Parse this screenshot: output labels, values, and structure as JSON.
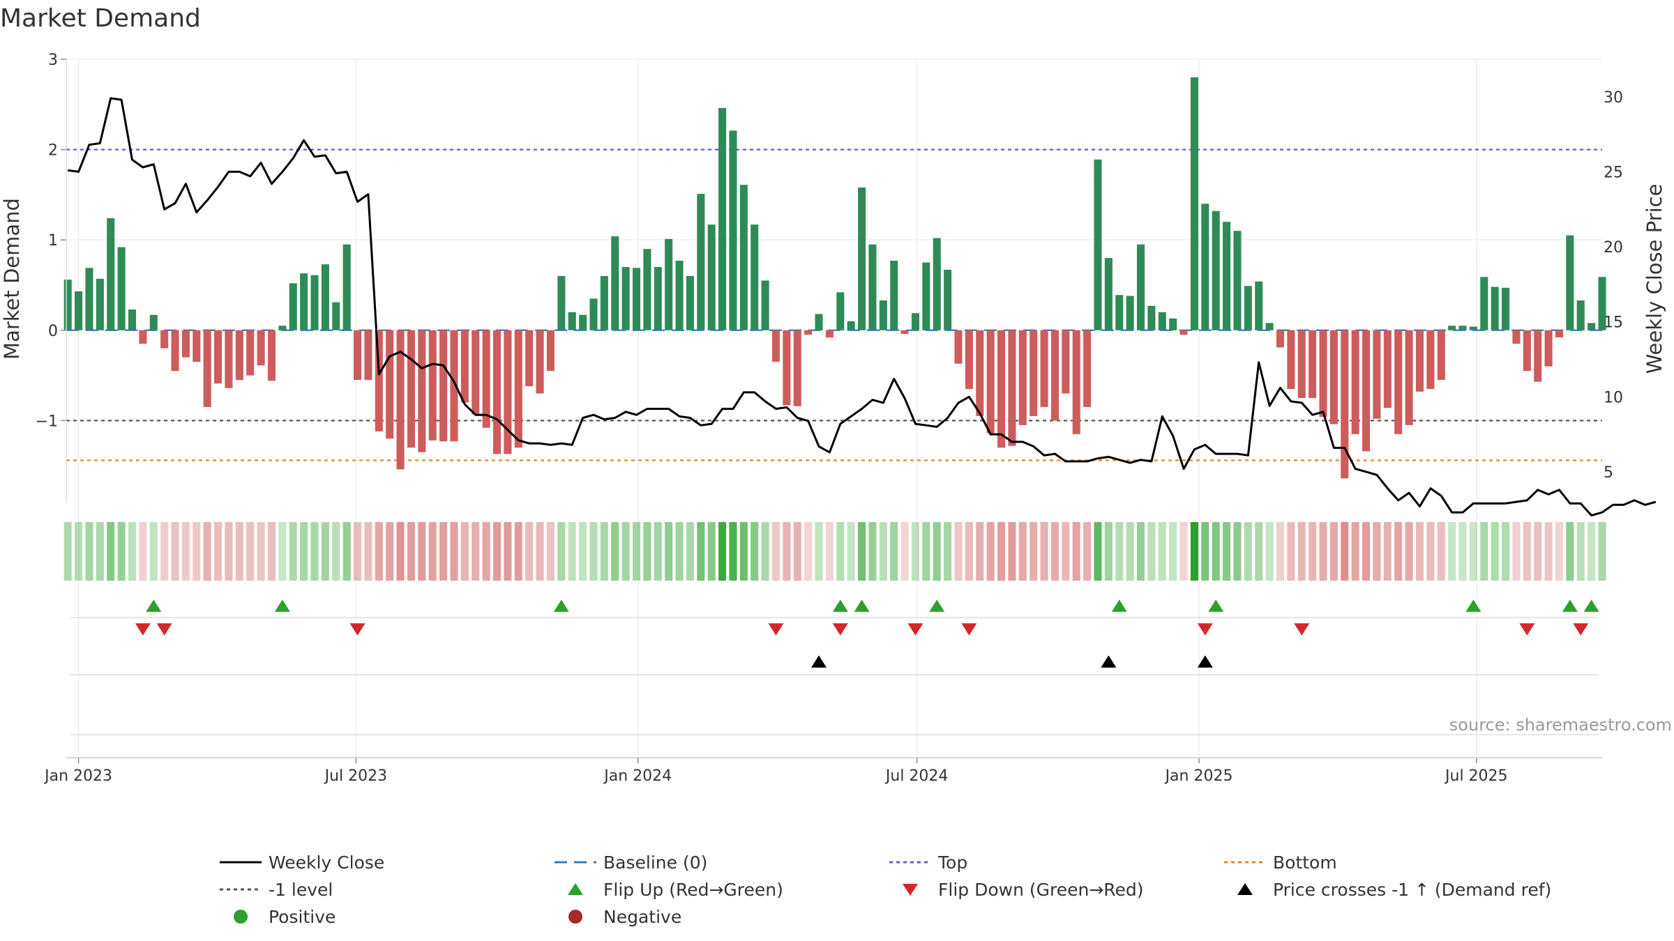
{
  "chart_data": {
    "type": "bar",
    "title": "Market Demand",
    "ylabel": "Market Demand",
    "y2label": "Weekly Close Price",
    "ylim": [
      -1.9,
      3.0
    ],
    "y_ticks": [
      3,
      2,
      1,
      0,
      -1
    ],
    "y_tick_labels": [
      "3",
      "2",
      "1",
      "0",
      "−1"
    ],
    "y2lim": [
      3.0,
      32.5
    ],
    "y2_ticks": [
      30,
      25,
      20,
      15,
      10,
      5
    ],
    "y2_tick_labels": [
      "30",
      "25",
      "20",
      "15",
      "10",
      "5"
    ],
    "x_range": [
      "2022-12-24",
      "2025-09-21"
    ],
    "x_ticks": [
      {
        "date": "2023-01-01",
        "label": "Jan 2023"
      },
      {
        "date": "2023-07-01",
        "label": "Jul 2023"
      },
      {
        "date": "2024-01-01",
        "label": "Jan 2024"
      },
      {
        "date": "2024-07-01",
        "label": "Jul 2024"
      },
      {
        "date": "2025-01-01",
        "label": "Jan 2025"
      },
      {
        "date": "2025-07-01",
        "label": "Jul 2025"
      }
    ],
    "start_week": "2022-12-25",
    "demand_values": [
      0.56,
      0.43,
      0.69,
      0.57,
      1.24,
      0.92,
      0.23,
      -0.15,
      0.17,
      -0.2,
      -0.45,
      -0.3,
      -0.35,
      -0.85,
      -0.59,
      -0.64,
      -0.55,
      -0.5,
      -0.39,
      -0.56,
      0.05,
      0.52,
      0.63,
      0.61,
      0.73,
      0.31,
      0.95,
      -0.55,
      -0.55,
      -1.12,
      -1.2,
      -1.54,
      -1.3,
      -1.35,
      -1.22,
      -1.23,
      -1.23,
      -0.8,
      -0.93,
      -1.08,
      -1.37,
      -1.37,
      -1.3,
      -0.62,
      -0.7,
      -0.45,
      0.6,
      0.2,
      0.17,
      0.35,
      0.6,
      1.04,
      0.7,
      0.69,
      0.9,
      0.7,
      1.01,
      0.77,
      0.6,
      1.51,
      1.17,
      2.46,
      2.21,
      1.61,
      1.17,
      0.55,
      -0.35,
      -0.83,
      -0.84,
      -0.05,
      0.18,
      -0.08,
      0.42,
      0.1,
      1.58,
      0.95,
      0.33,
      0.77,
      -0.04,
      0.19,
      0.75,
      1.02,
      0.67,
      -0.37,
      -0.65,
      -0.95,
      -1.14,
      -1.3,
      -1.28,
      -1.05,
      -0.95,
      -0.85,
      -1.0,
      -0.7,
      -1.15,
      -0.85,
      1.89,
      0.8,
      0.39,
      0.38,
      0.95,
      0.27,
      0.2,
      0.13,
      -0.05,
      2.8,
      1.4,
      1.32,
      1.2,
      1.1,
      0.49,
      0.54,
      0.08,
      -0.19,
      -0.65,
      -0.75,
      -0.75,
      -0.96,
      -1.04,
      -1.64,
      -1.15,
      -1.34,
      -0.98,
      -0.86,
      -1.15,
      -1.05,
      -0.68,
      -0.65,
      -0.55,
      0.05,
      0.05,
      0.04,
      0.59,
      0.48,
      0.47,
      -0.15,
      -0.45,
      -0.57,
      -0.4,
      -0.08,
      1.05,
      0.33,
      0.08,
      0.59
    ],
    "close_values": [
      25.1,
      25.0,
      26.8,
      26.9,
      29.9,
      29.8,
      25.8,
      25.3,
      25.5,
      22.5,
      22.9,
      24.2,
      22.3,
      23.1,
      24.0,
      25.0,
      25.0,
      24.7,
      25.6,
      24.2,
      25.0,
      25.9,
      27.1,
      26.0,
      26.1,
      24.9,
      25.0,
      23.0,
      23.5,
      11.5,
      12.7,
      13.0,
      12.5,
      11.9,
      12.2,
      12.1,
      11.0,
      9.5,
      8.8,
      8.8,
      8.5,
      7.8,
      7.1,
      6.9,
      6.9,
      6.8,
      6.9,
      6.8,
      8.6,
      8.8,
      8.5,
      8.6,
      9.0,
      8.8,
      9.2,
      9.2,
      9.2,
      8.7,
      8.6,
      8.1,
      8.2,
      9.2,
      9.2,
      10.3,
      10.3,
      9.7,
      9.2,
      9.3,
      8.6,
      8.4,
      6.7,
      6.3,
      8.2,
      8.7,
      9.2,
      9.8,
      9.6,
      11.2,
      9.9,
      8.2,
      8.1,
      8.0,
      8.6,
      9.6,
      10.0,
      8.9,
      7.5,
      7.5,
      7.0,
      7.0,
      6.7,
      6.1,
      6.2,
      5.7,
      5.7,
      5.7,
      5.9,
      6.0,
      5.8,
      5.6,
      5.8,
      5.7,
      8.7,
      7.4,
      5.2,
      6.5,
      6.8,
      6.2,
      6.2,
      6.2,
      6.1,
      12.3,
      9.4,
      10.6,
      9.7,
      9.6,
      8.8,
      9.0,
      6.6,
      6.6,
      5.2,
      5.0,
      4.8,
      3.9,
      3.1,
      3.6,
      2.7,
      3.9,
      3.4,
      2.3,
      2.3,
      2.9,
      2.9,
      2.9,
      2.9,
      3.0,
      3.1,
      3.8,
      3.5,
      3.8,
      2.9,
      2.9,
      2.1,
      2.3,
      2.8,
      2.8,
      3.1,
      2.8,
      3.0
    ],
    "reference_lines": [
      {
        "name": "Baseline (0)",
        "value": 0,
        "color": "#2f7ebc"
      },
      {
        "name": "Top",
        "value": 2.0,
        "color": "#6a5acd"
      },
      {
        "name": "-1 level",
        "value": -1.0,
        "color": "#555555"
      },
      {
        "name": "Bottom",
        "value": -1.44,
        "color": "#e08a1e"
      }
    ],
    "flip_up_weeks": [
      8,
      20,
      46,
      72,
      74,
      81,
      98,
      107,
      131,
      140,
      142
    ],
    "flip_down_weeks": [
      7,
      9,
      27,
      66,
      72,
      79,
      84,
      106,
      115,
      136,
      141
    ],
    "price_cross_weeks": [
      70,
      97,
      106
    ],
    "source": "source: sharemaestro.com",
    "legend": [
      {
        "label": "Weekly Close",
        "marker": "solid-line",
        "color": "#000000"
      },
      {
        "label": "Baseline (0)",
        "marker": "dash-line",
        "color": "#2f7ebc"
      },
      {
        "label": "Top",
        "marker": "dot-line",
        "color": "#6a5acd"
      },
      {
        "label": "Bottom",
        "marker": "dot-line",
        "color": "#e08a1e"
      },
      {
        "label": "-1 level",
        "marker": "dot-line",
        "color": "#555555"
      },
      {
        "label": "Flip Up (Red→Green)",
        "marker": "triangle-up",
        "color": "#2ca02c"
      },
      {
        "label": "Flip Down (Green→Red)",
        "marker": "triangle-down",
        "color": "#d62728"
      },
      {
        "label": "Price crosses -1 ↑ (Demand ref)",
        "marker": "triangle-up",
        "color": "#000000"
      },
      {
        "label": "Positive",
        "marker": "circle",
        "color": "#2ca02c"
      },
      {
        "label": "Negative",
        "marker": "circle",
        "color": "#a52a2a"
      }
    ],
    "colors": {
      "positive_bar": "#2e8b57",
      "negative_bar": "#cd5c5c",
      "close_line": "#000000",
      "flip_up": "#2ca02c",
      "flip_down": "#d62728",
      "price_cross": "#000000",
      "strip_positive": "#2ca02c",
      "strip_negative": "#cd5c5c"
    }
  }
}
